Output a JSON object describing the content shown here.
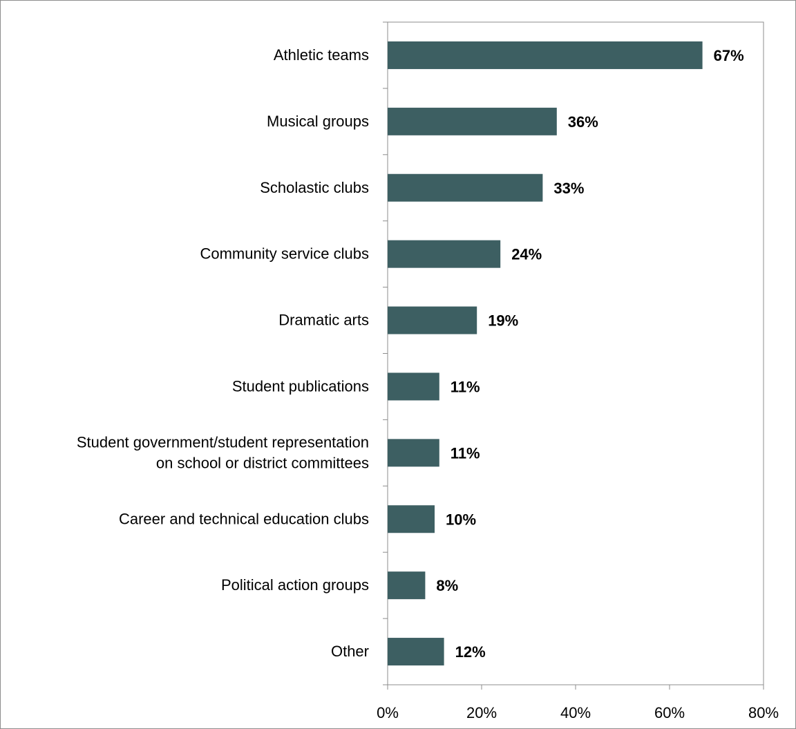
{
  "chart_data": {
    "type": "bar",
    "orientation": "horizontal",
    "categories": [
      [
        "Athletic teams"
      ],
      [
        "Musical groups"
      ],
      [
        "Scholastic clubs"
      ],
      [
        "Community service clubs"
      ],
      [
        "Dramatic arts"
      ],
      [
        "Student publications"
      ],
      [
        "Student government/student representation",
        "on school or district committees"
      ],
      [
        "Career and technical education clubs"
      ],
      [
        "Political action groups"
      ],
      [
        "Other"
      ]
    ],
    "values": [
      67,
      36,
      33,
      24,
      19,
      11,
      11,
      10,
      8,
      12
    ],
    "data_labels": [
      "67%",
      "36%",
      "33%",
      "24%",
      "19%",
      "11%",
      "11%",
      "10%",
      "8%",
      "12%"
    ],
    "xlim": [
      0,
      80
    ],
    "xticks": [
      0,
      20,
      40,
      60,
      80
    ],
    "xtick_labels": [
      "0%",
      "20%",
      "40%",
      "60%",
      "80%"
    ],
    "bar_color": "#3d5f62",
    "axis_color": "#8c8c8c",
    "grid": false,
    "legend": "none",
    "title": "",
    "xlabel": "",
    "ylabel": ""
  }
}
